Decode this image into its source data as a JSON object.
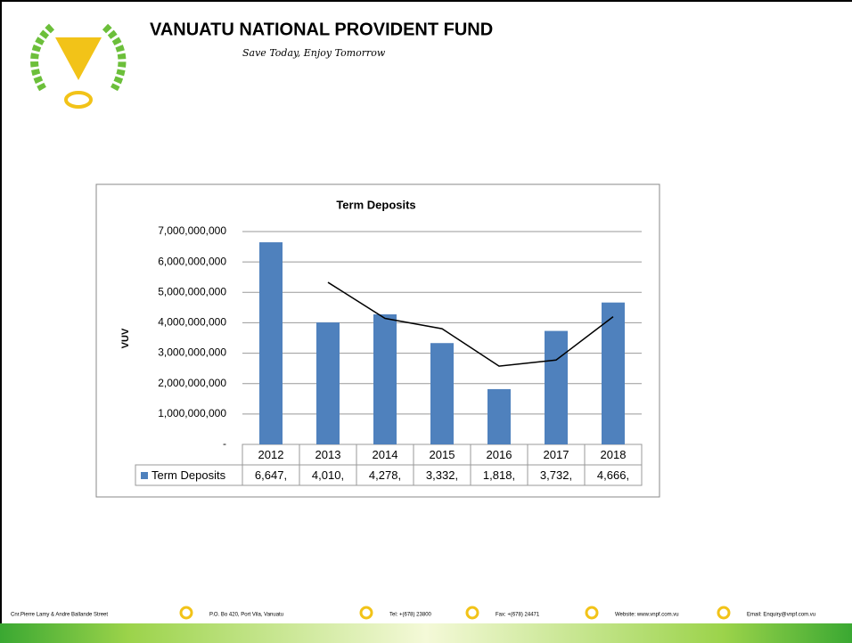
{
  "header": {
    "title": "VANUATU NATIONAL PROVIDENT FUND",
    "tagline": "Save Today, Enjoy Tomorrow"
  },
  "chart_data": {
    "type": "bar",
    "title": "Term Deposits",
    "ylabel": "VUV",
    "categories": [
      "2012",
      "2013",
      "2014",
      "2015",
      "2016",
      "2017",
      "2018"
    ],
    "series": [
      {
        "name": "Term Deposits",
        "color": "#4f81bd",
        "values": [
          6647000000,
          4010000000,
          4278000000,
          3332000000,
          1818000000,
          3732000000,
          4666000000
        ],
        "value_labels": [
          "6,647,",
          "4,010,",
          "4,278,",
          "3,332,",
          "1,818,",
          "3,732,",
          "4,666,"
        ]
      }
    ],
    "trendline": {
      "color": "#000000",
      "values": [
        null,
        5328500000,
        4144000000,
        3805000000,
        2575000000,
        2775000000,
        4199000000
      ]
    },
    "ylim": [
      0,
      7000000000
    ],
    "yticks": [
      {
        "value": 0,
        "label": "-"
      },
      {
        "value": 1000000000,
        "label": "1,000,000,000"
      },
      {
        "value": 2000000000,
        "label": "2,000,000,000"
      },
      {
        "value": 3000000000,
        "label": "3,000,000,000"
      },
      {
        "value": 4000000000,
        "label": "4,000,000,000"
      },
      {
        "value": 5000000000,
        "label": "5,000,000,000"
      },
      {
        "value": 6000000000,
        "label": "6,000,000,000"
      },
      {
        "value": 7000000000,
        "label": "7,000,000,000"
      }
    ],
    "grid": true
  },
  "footer": {
    "items": [
      "Cnr.Pierre Lamy & Andre Ballande Street",
      "P.O. Bo 420, Port Vila, Vanuatu",
      "Tel: +(678) 23800",
      "Fax: +(678) 24471",
      "Website: www.vnpf.com.vu",
      "Email: Enquiry@vnpf.com.vu"
    ]
  }
}
